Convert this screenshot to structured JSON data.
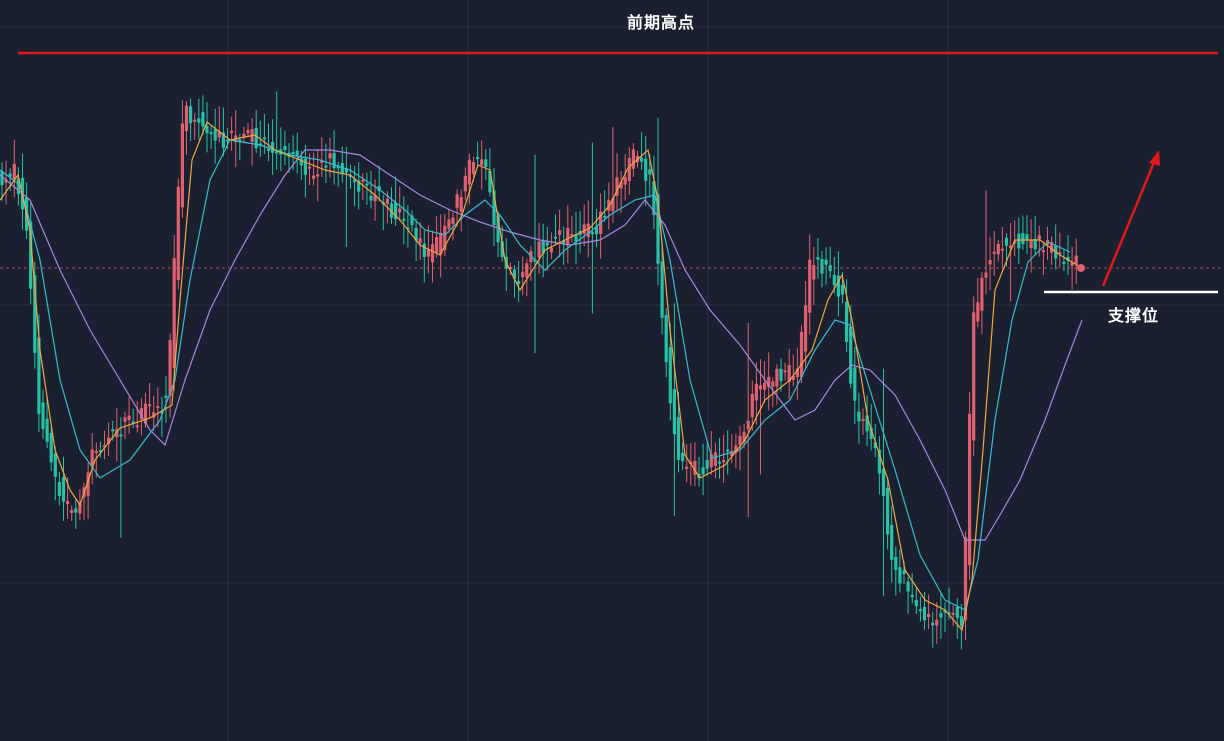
{
  "colors": {
    "background": "#1b2030",
    "grid": "#2a3142",
    "up_candle": "#e06070",
    "down_candle": "#26c2a8",
    "ma_fast": "#f0a840",
    "ma_mid": "#38bcd0",
    "ma_slow": "#a488dc",
    "resistance": "#e01a1a",
    "support": "#ffffff",
    "arrow": "#e01a1a",
    "current_price_line": "#e06070"
  },
  "chart_data": {
    "type": "candlestick",
    "title": "",
    "xlabel": "",
    "ylabel": "",
    "ylim": [
      0,
      741
    ],
    "annotations": {
      "resistance_label": "前期高点",
      "support_label": "支撑位"
    },
    "levels": {
      "resistance": 53,
      "support": 292,
      "current_price": 268
    },
    "grid": true,
    "legend": "none",
    "trend_arrow": {
      "from_y": 286,
      "to_y": 150,
      "direction": "up"
    },
    "price_path": [
      [
        0,
        180
      ],
      [
        18,
        170
      ],
      [
        30,
        240
      ],
      [
        40,
        400
      ],
      [
        55,
        470
      ],
      [
        68,
        505
      ],
      [
        80,
        510
      ],
      [
        95,
        450
      ],
      [
        120,
        430
      ],
      [
        150,
        410
      ],
      [
        170,
        400
      ],
      [
        178,
        230
      ],
      [
        186,
        110
      ],
      [
        200,
        120
      ],
      [
        225,
        140
      ],
      [
        250,
        135
      ],
      [
        270,
        145
      ],
      [
        290,
        150
      ],
      [
        310,
        175
      ],
      [
        330,
        160
      ],
      [
        345,
        170
      ],
      [
        360,
        185
      ],
      [
        385,
        200
      ],
      [
        410,
        225
      ],
      [
        430,
        255
      ],
      [
        445,
        240
      ],
      [
        460,
        200
      ],
      [
        475,
        160
      ],
      [
        490,
        170
      ],
      [
        500,
        250
      ],
      [
        520,
        280
      ],
      [
        540,
        250
      ],
      [
        555,
        240
      ],
      [
        575,
        235
      ],
      [
        600,
        225
      ],
      [
        620,
        185
      ],
      [
        640,
        150
      ],
      [
        655,
        190
      ],
      [
        665,
        330
      ],
      [
        680,
        460
      ],
      [
        700,
        470
      ],
      [
        720,
        460
      ],
      [
        740,
        440
      ],
      [
        760,
        390
      ],
      [
        780,
        375
      ],
      [
        800,
        370
      ],
      [
        812,
        265
      ],
      [
        830,
        270
      ],
      [
        845,
        300
      ],
      [
        855,
        400
      ],
      [
        880,
        460
      ],
      [
        895,
        560
      ],
      [
        915,
        600
      ],
      [
        935,
        620
      ],
      [
        950,
        610
      ],
      [
        965,
        620
      ],
      [
        975,
        320
      ],
      [
        990,
        260
      ],
      [
        1005,
        240
      ],
      [
        1025,
        240
      ],
      [
        1045,
        245
      ],
      [
        1060,
        255
      ],
      [
        1080,
        265
      ]
    ],
    "ma_fast": [
      [
        0,
        200
      ],
      [
        18,
        175
      ],
      [
        30,
        230
      ],
      [
        40,
        350
      ],
      [
        55,
        450
      ],
      [
        70,
        490
      ],
      [
        80,
        505
      ],
      [
        95,
        460
      ],
      [
        120,
        428
      ],
      [
        150,
        418
      ],
      [
        172,
        405
      ],
      [
        180,
        300
      ],
      [
        192,
        160
      ],
      [
        207,
        122
      ],
      [
        230,
        140
      ],
      [
        255,
        135
      ],
      [
        275,
        150
      ],
      [
        300,
        160
      ],
      [
        325,
        170
      ],
      [
        350,
        175
      ],
      [
        375,
        195
      ],
      [
        400,
        220
      ],
      [
        420,
        245
      ],
      [
        440,
        255
      ],
      [
        462,
        215
      ],
      [
        478,
        165
      ],
      [
        490,
        170
      ],
      [
        505,
        260
      ],
      [
        520,
        290
      ],
      [
        545,
        250
      ],
      [
        565,
        240
      ],
      [
        590,
        228
      ],
      [
        610,
        205
      ],
      [
        628,
        168
      ],
      [
        648,
        150
      ],
      [
        658,
        200
      ],
      [
        670,
        330
      ],
      [
        685,
        455
      ],
      [
        700,
        478
      ],
      [
        725,
        465
      ],
      [
        745,
        440
      ],
      [
        765,
        400
      ],
      [
        790,
        380
      ],
      [
        812,
        350
      ],
      [
        828,
        300
      ],
      [
        842,
        275
      ],
      [
        852,
        320
      ],
      [
        868,
        420
      ],
      [
        888,
        480
      ],
      [
        905,
        570
      ],
      [
        925,
        600
      ],
      [
        945,
        610
      ],
      [
        962,
        630
      ],
      [
        972,
        580
      ],
      [
        983,
        450
      ],
      [
        995,
        290
      ],
      [
        1015,
        240
      ],
      [
        1040,
        240
      ],
      [
        1060,
        255
      ],
      [
        1082,
        268
      ]
    ],
    "ma_mid": [
      [
        0,
        170
      ],
      [
        20,
        185
      ],
      [
        40,
        260
      ],
      [
        60,
        380
      ],
      [
        80,
        450
      ],
      [
        100,
        478
      ],
      [
        130,
        460
      ],
      [
        160,
        420
      ],
      [
        175,
        380
      ],
      [
        190,
        280
      ],
      [
        210,
        180
      ],
      [
        230,
        140
      ],
      [
        260,
        145
      ],
      [
        290,
        155
      ],
      [
        320,
        160
      ],
      [
        350,
        170
      ],
      [
        380,
        190
      ],
      [
        405,
        210
      ],
      [
        425,
        230
      ],
      [
        445,
        235
      ],
      [
        465,
        215
      ],
      [
        485,
        200
      ],
      [
        500,
        215
      ],
      [
        520,
        245
      ],
      [
        545,
        270
      ],
      [
        565,
        250
      ],
      [
        590,
        232
      ],
      [
        610,
        215
      ],
      [
        635,
        200
      ],
      [
        655,
        195
      ],
      [
        670,
        260
      ],
      [
        690,
        380
      ],
      [
        712,
        458
      ],
      [
        740,
        450
      ],
      [
        765,
        420
      ],
      [
        790,
        400
      ],
      [
        815,
        350
      ],
      [
        835,
        320
      ],
      [
        850,
        325
      ],
      [
        870,
        390
      ],
      [
        895,
        470
      ],
      [
        920,
        555
      ],
      [
        945,
        600
      ],
      [
        965,
        610
      ],
      [
        978,
        560
      ],
      [
        995,
        420
      ],
      [
        1012,
        320
      ],
      [
        1028,
        262
      ],
      [
        1048,
        242
      ],
      [
        1070,
        252
      ]
    ],
    "ma_slow": [
      [
        0,
        175
      ],
      [
        30,
        200
      ],
      [
        60,
        270
      ],
      [
        90,
        330
      ],
      [
        120,
        380
      ],
      [
        150,
        430
      ],
      [
        165,
        445
      ],
      [
        185,
        380
      ],
      [
        210,
        310
      ],
      [
        235,
        260
      ],
      [
        260,
        215
      ],
      [
        285,
        175
      ],
      [
        305,
        150
      ],
      [
        330,
        150
      ],
      [
        360,
        155
      ],
      [
        390,
        175
      ],
      [
        420,
        195
      ],
      [
        450,
        210
      ],
      [
        480,
        222
      ],
      [
        510,
        232
      ],
      [
        540,
        240
      ],
      [
        570,
        245
      ],
      [
        600,
        240
      ],
      [
        625,
        225
      ],
      [
        645,
        200
      ],
      [
        665,
        225
      ],
      [
        685,
        270
      ],
      [
        710,
        310
      ],
      [
        740,
        345
      ],
      [
        765,
        380
      ],
      [
        795,
        420
      ],
      [
        815,
        410
      ],
      [
        835,
        380
      ],
      [
        852,
        365
      ],
      [
        870,
        370
      ],
      [
        895,
        395
      ],
      [
        920,
        440
      ],
      [
        945,
        490
      ],
      [
        965,
        540
      ],
      [
        985,
        540
      ],
      [
        1000,
        515
      ],
      [
        1020,
        480
      ],
      [
        1045,
        420
      ],
      [
        1065,
        365
      ],
      [
        1082,
        320
      ]
    ]
  }
}
